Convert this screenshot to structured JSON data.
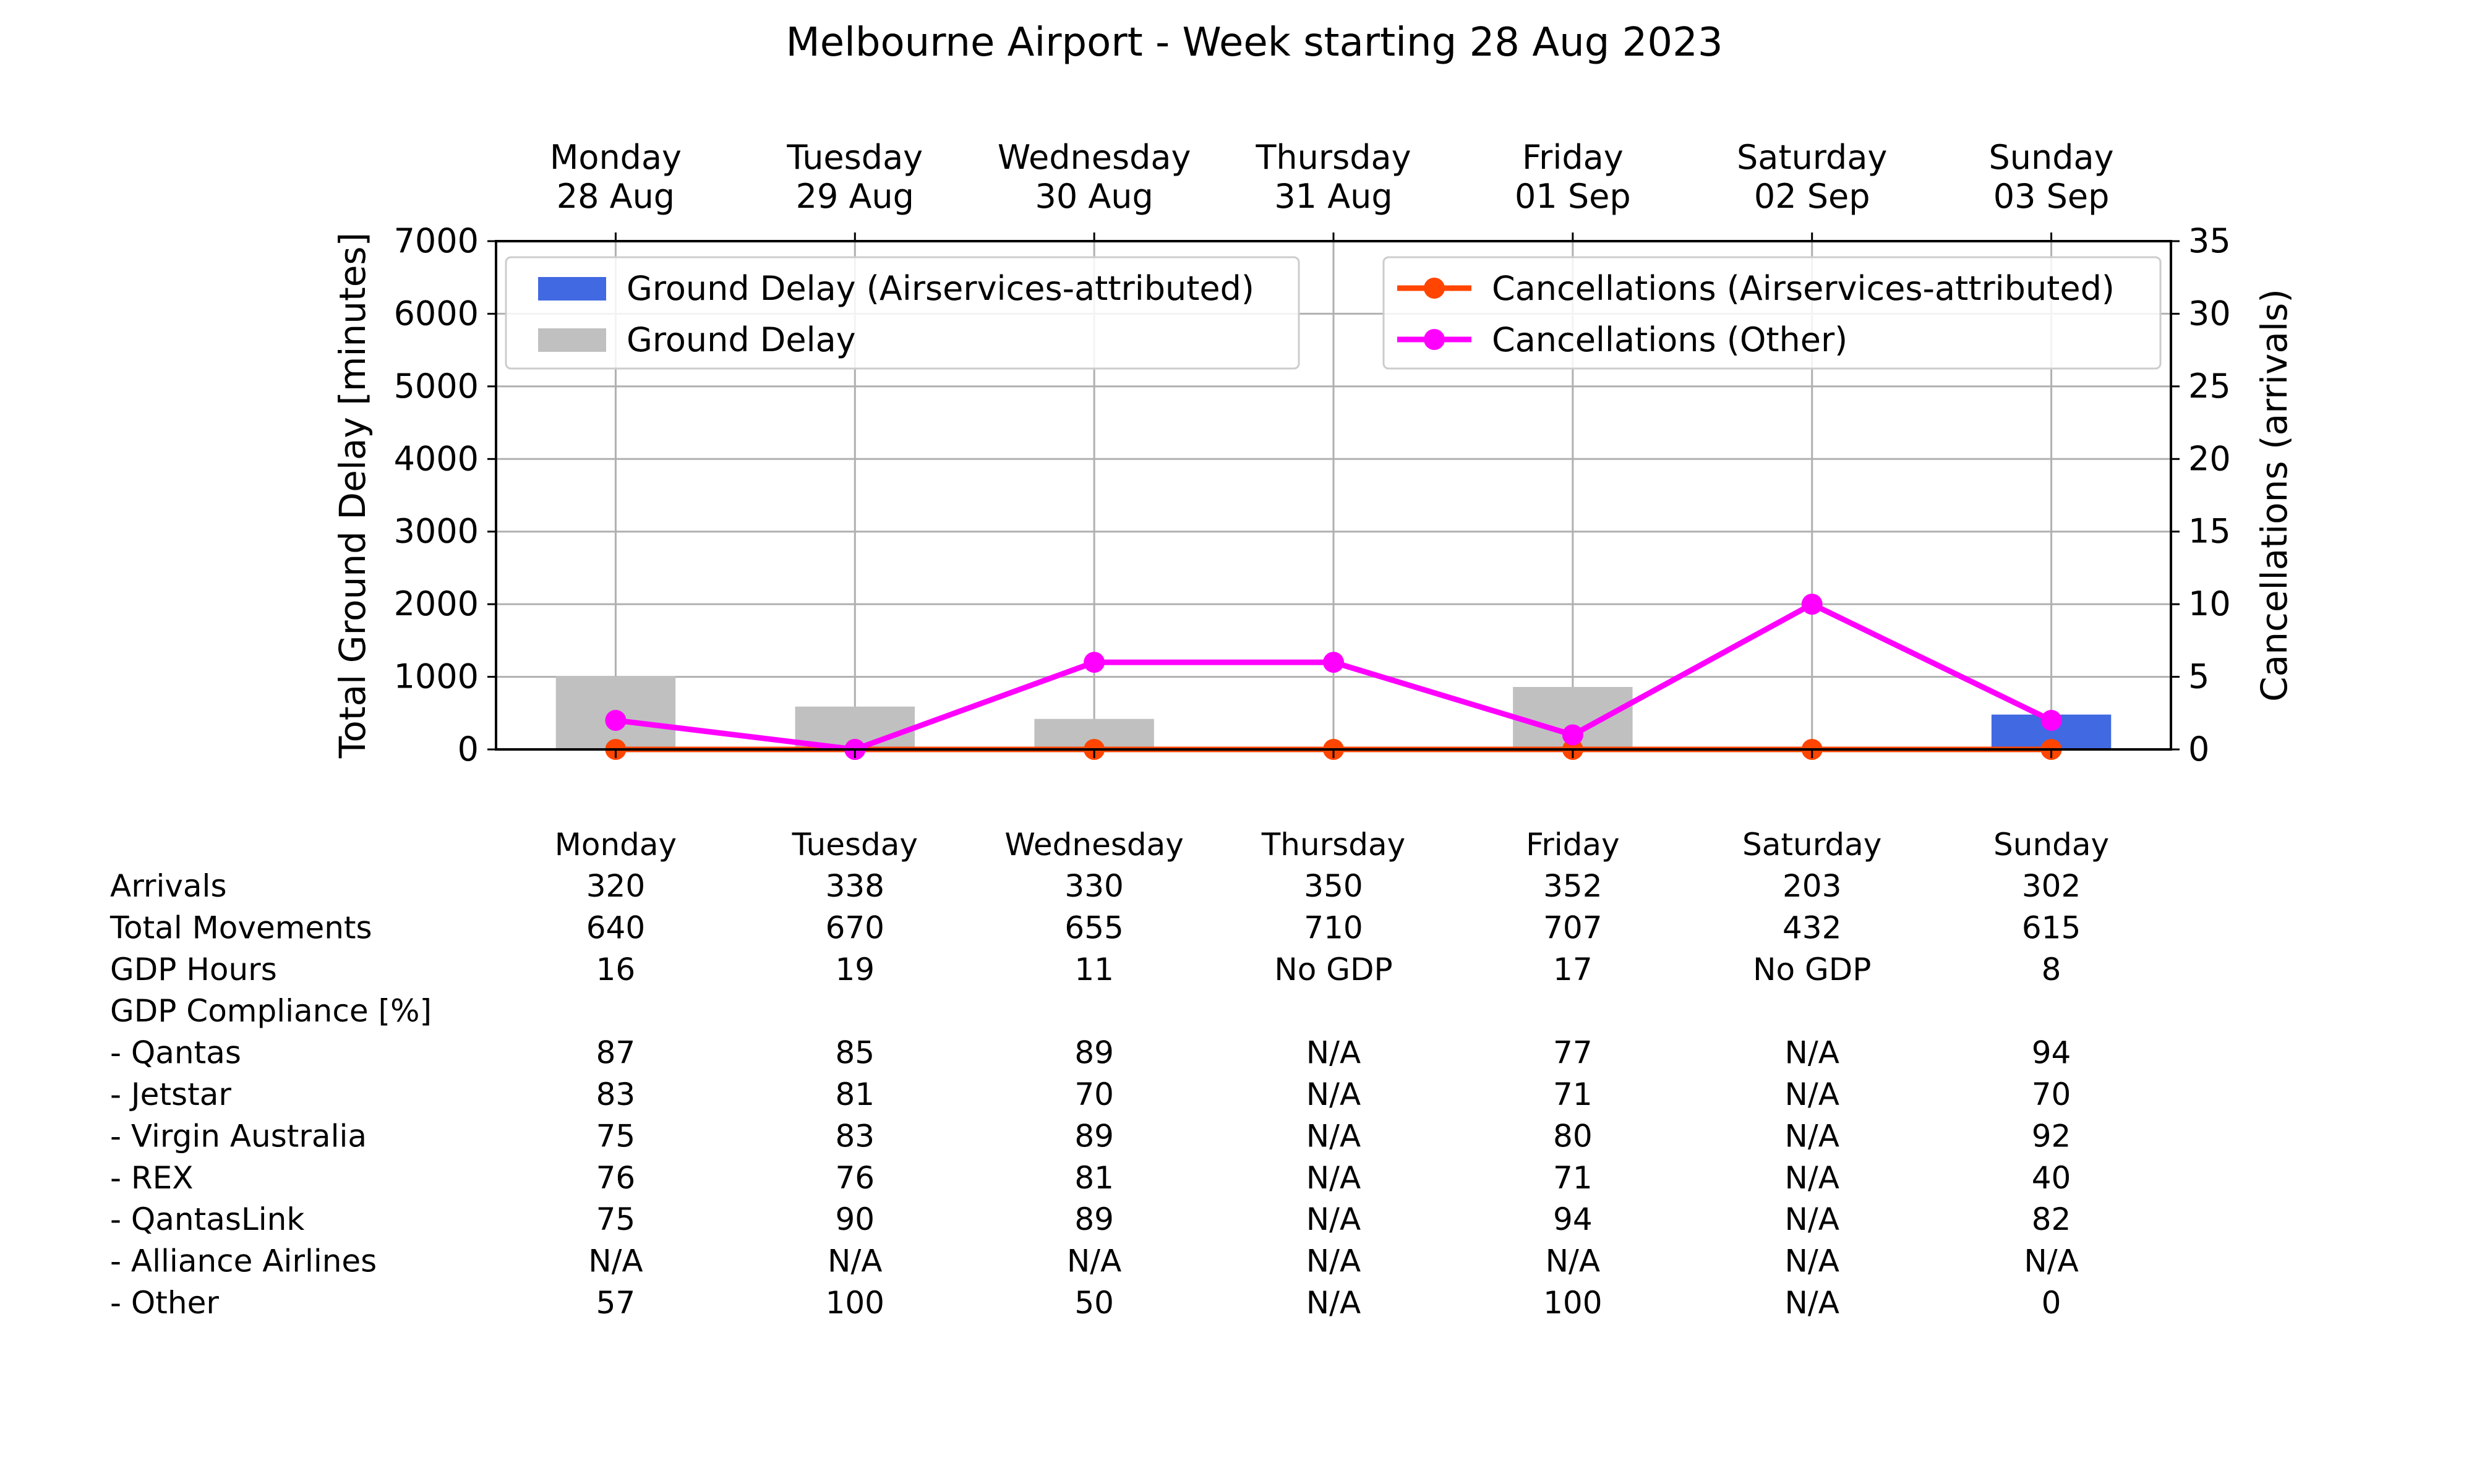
{
  "chart_data": {
    "type": "bar",
    "title": "Melbourne Airport - Week starting 28 Aug 2023",
    "categories": [
      [
        "Monday",
        "28 Aug"
      ],
      [
        "Tuesday",
        "29 Aug"
      ],
      [
        "Wednesday",
        "30 Aug"
      ],
      [
        "Thursday",
        "31 Aug"
      ],
      [
        "Friday",
        "01 Sep"
      ],
      [
        "Saturday",
        "02 Sep"
      ],
      [
        "Sunday",
        "03 Sep"
      ]
    ],
    "ylabel": "Total Ground Delay [minutes]",
    "ylim": [
      0,
      7000
    ],
    "yticks": [
      0,
      1000,
      2000,
      3000,
      4000,
      5000,
      6000,
      7000
    ],
    "y2label": "Cancellations (arrivals)",
    "y2lim": [
      0,
      35
    ],
    "y2ticks": [
      0,
      5,
      10,
      15,
      20,
      25,
      30,
      35
    ],
    "grid": true,
    "bar_series": [
      {
        "name": "Ground Delay (Airservices-attributed)",
        "color": "#4169e1",
        "values": [
          0,
          0,
          0,
          0,
          0,
          0,
          480
        ]
      },
      {
        "name": "Ground Delay",
        "color": "#c0c0c0",
        "values": [
          1010,
          590,
          420,
          0,
          860,
          0,
          0
        ]
      }
    ],
    "line_series": [
      {
        "name": "Cancellations (Airservices-attributed)",
        "color": "#ff4500",
        "axis": "right",
        "values": [
          0,
          0,
          0,
          0,
          0,
          0,
          0
        ]
      },
      {
        "name": "Cancellations (Other)",
        "color": "#ff00ff",
        "axis": "right",
        "values": [
          2,
          0,
          6,
          6,
          1,
          10,
          2
        ]
      }
    ],
    "legend_left_position": "upper-left",
    "legend_right_position": "upper-right"
  },
  "table": {
    "columns": [
      "Monday",
      "Tuesday",
      "Wednesday",
      "Thursday",
      "Friday",
      "Saturday",
      "Sunday"
    ],
    "rows": [
      {
        "label": "Arrivals",
        "values": [
          "320",
          "338",
          "330",
          "350",
          "352",
          "203",
          "302"
        ]
      },
      {
        "label": "Total Movements",
        "values": [
          "640",
          "670",
          "655",
          "710",
          "707",
          "432",
          "615"
        ]
      },
      {
        "label": "GDP Hours",
        "values": [
          "16",
          "19",
          "11",
          "No GDP",
          "17",
          "No GDP",
          "8"
        ]
      },
      {
        "label": "GDP Compliance [%]",
        "values": [
          "",
          "",
          "",
          "",
          "",
          "",
          ""
        ]
      },
      {
        "label": "  - Qantas",
        "values": [
          "87",
          "85",
          "89",
          "N/A",
          "77",
          "N/A",
          "94"
        ]
      },
      {
        "label": "  - Jetstar",
        "values": [
          "83",
          "81",
          "70",
          "N/A",
          "71",
          "N/A",
          "70"
        ]
      },
      {
        "label": "  - Virgin Australia",
        "values": [
          "75",
          "83",
          "89",
          "N/A",
          "80",
          "N/A",
          "92"
        ]
      },
      {
        "label": "  - REX",
        "values": [
          "76",
          "76",
          "81",
          "N/A",
          "71",
          "N/A",
          "40"
        ]
      },
      {
        "label": "  - QantasLink",
        "values": [
          "75",
          "90",
          "89",
          "N/A",
          "94",
          "N/A",
          "82"
        ]
      },
      {
        "label": "  - Alliance Airlines",
        "values": [
          "N/A",
          "N/A",
          "N/A",
          "N/A",
          "N/A",
          "N/A",
          "N/A"
        ]
      },
      {
        "label": "  - Other",
        "values": [
          "57",
          "100",
          "50",
          "N/A",
          "100",
          "N/A",
          "0"
        ]
      }
    ]
  }
}
